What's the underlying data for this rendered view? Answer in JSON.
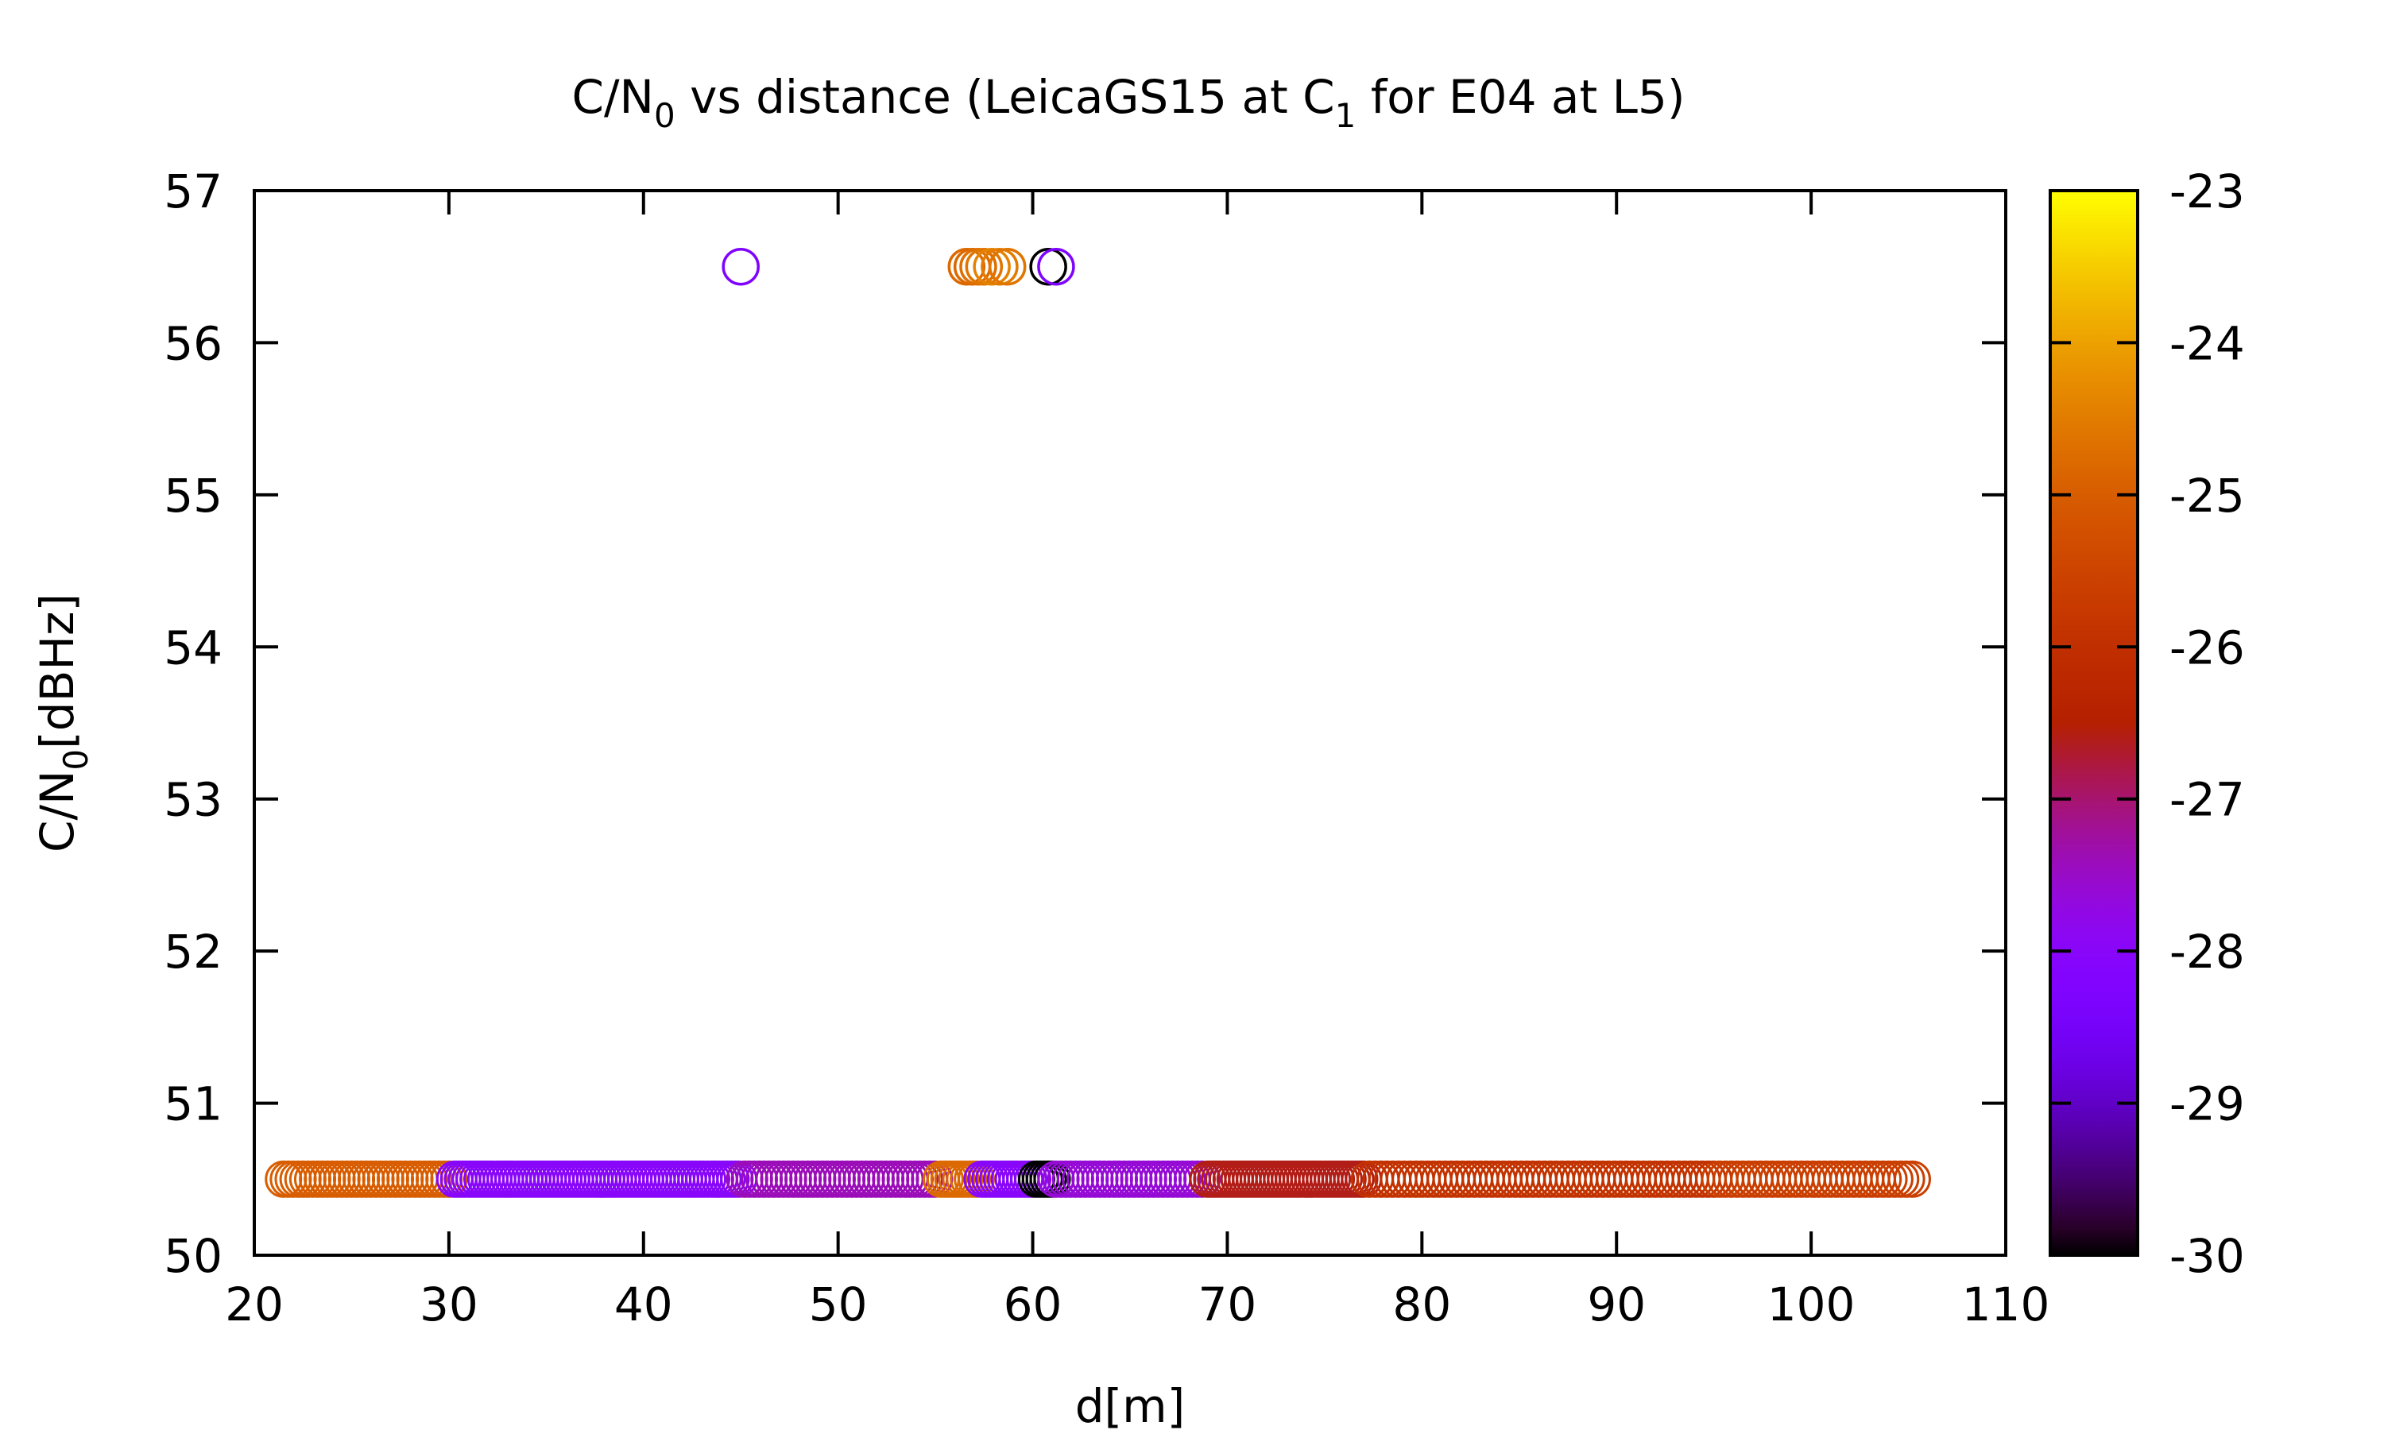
{
  "chart_data": {
    "type": "scatter",
    "title": {
      "pre": "C/N",
      "sub1": "0",
      "mid": " vs distance (LeicaGS15 at C",
      "sub2": "1",
      "post": " for E04 at L5)"
    },
    "xlabel": "d[m]",
    "ylabel": {
      "pre": "C/N",
      "sub": "0",
      "post": "[dBHz]"
    },
    "xlim": [
      20,
      110
    ],
    "ylim": [
      50,
      57
    ],
    "xticks": [
      20,
      30,
      40,
      50,
      60,
      70,
      80,
      90,
      100,
      110
    ],
    "yticks": [
      50,
      51,
      52,
      53,
      54,
      55,
      56,
      57
    ],
    "colorbar": {
      "range": [
        -30,
        -23
      ],
      "ticks": [
        -30,
        -29,
        -28,
        -27,
        -26,
        -25,
        -24,
        -23
      ],
      "palette": "gnuplot (black-purple-red-orange-yellow)"
    },
    "marker": "open circle",
    "series": [
      {
        "y": 50.5,
        "segments": [
          {
            "x_from": 21.5,
            "x_to": 30.0,
            "step": 0.25,
            "color_value": -25.0
          },
          {
            "x_from": 30.3,
            "x_to": 45.0,
            "step": 0.2,
            "color_value": -28.0
          },
          {
            "x_from": 45.2,
            "x_to": 55.0,
            "step": 0.25,
            "color_value": -27.4
          },
          {
            "x_from": 55.3,
            "x_to": 57.2,
            "step": 0.2,
            "color_value": -24.8
          },
          {
            "x_from": 57.4,
            "x_to": 60.0,
            "step": 0.2,
            "color_value": -28.0
          },
          {
            "x_from": 60.2,
            "x_to": 61.0,
            "step": 0.2,
            "color_value": -30.0
          },
          {
            "x_from": 61.2,
            "x_to": 68.8,
            "step": 0.25,
            "color_value": -27.6
          },
          {
            "x_from": 69.0,
            "x_to": 77.0,
            "step": 0.2,
            "color_value": -26.6
          },
          {
            "x_from": 77.3,
            "x_to": 95.0,
            "step": 0.3,
            "color_value": -25.9
          },
          {
            "x_from": 95.3,
            "x_to": 105.2,
            "step": 0.3,
            "color_value": -25.6
          }
        ]
      },
      {
        "y": 56.5,
        "points": [
          {
            "x": 45.0,
            "color_value": -28.3
          },
          {
            "x": 56.6,
            "color_value": -24.8
          },
          {
            "x": 56.9,
            "color_value": -24.8
          },
          {
            "x": 57.2,
            "color_value": -24.7
          },
          {
            "x": 57.5,
            "color_value": -24.6
          },
          {
            "x": 57.9,
            "color_value": -24.4
          },
          {
            "x": 58.3,
            "color_value": -24.5
          },
          {
            "x": 58.7,
            "color_value": -24.6
          },
          {
            "x": 60.8,
            "color_value": -30.0
          },
          {
            "x": 61.2,
            "color_value": -28.3
          }
        ]
      }
    ]
  }
}
